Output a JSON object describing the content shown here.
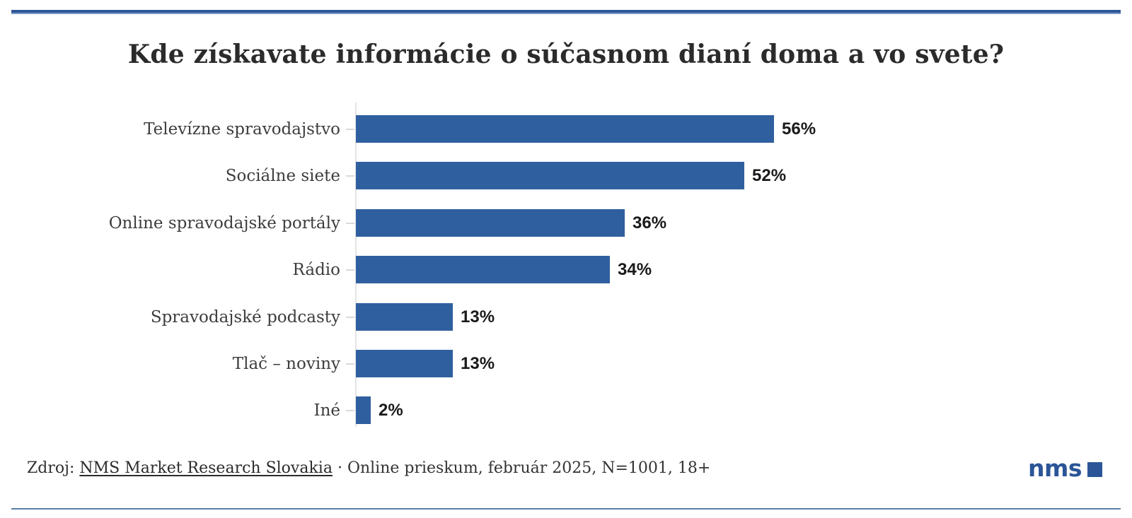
{
  "chart_data": {
    "type": "bar",
    "orientation": "horizontal",
    "title": "Kde získavate informácie o súčasnom dianí doma a vo svete?",
    "categories": [
      "Televízne spravodajstvo",
      "Sociálne siete",
      "Online spravodajské portály",
      "Rádio",
      "Spravodajské podcasty",
      "Tlač – noviny",
      "Iné"
    ],
    "values": [
      56,
      52,
      36,
      34,
      13,
      13,
      2
    ],
    "value_suffix": "%",
    "xlabel": "",
    "ylabel": "",
    "xlim": [
      0,
      60
    ],
    "grid": false,
    "legend": false,
    "x_axis_ticks_visible": false,
    "bar_color": "#2f5f9f"
  },
  "source": {
    "prefix": "Zdroj:",
    "link_label": "NMS Market Research Slovakia",
    "rest": "· Online prieskum, február 2025, N=1001, 18+"
  },
  "logo": {
    "text": "nms"
  },
  "colors": {
    "bar_blue": "#2f5f9f",
    "logo_blue": "#2b5597",
    "top_rule_blue": "#2d5796",
    "bottom_rule_blue": "#5c80a4",
    "title_text": "#2b2b2b",
    "label_text": "#3d3d3d",
    "value_text": "#1a1a1a"
  }
}
